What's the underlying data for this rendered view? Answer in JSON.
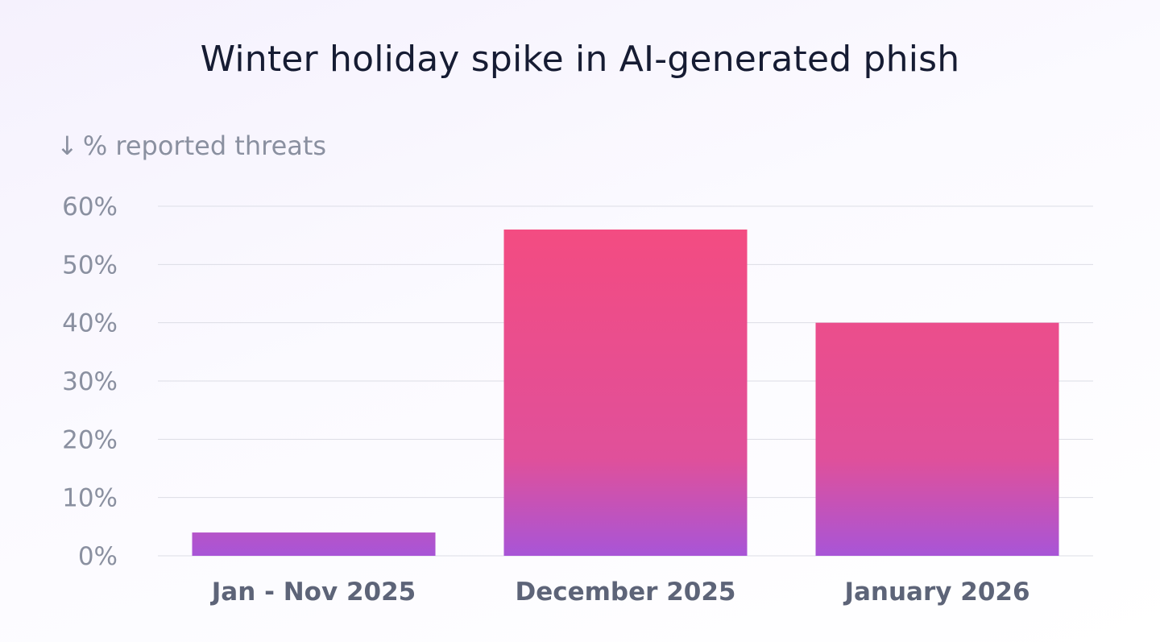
{
  "chart_data": {
    "type": "bar",
    "title": "Winter holiday spike in AI-generated phish",
    "ylabel": "% reported threats",
    "ylabel_icon": "arrow-down-icon",
    "ylabel_arrow": "↓",
    "xlabel": "",
    "categories": [
      "Jan - Nov 2025",
      "December 2025",
      "January 2026"
    ],
    "values": [
      4,
      56,
      40
    ],
    "ylim": [
      0,
      60
    ],
    "yticks": [
      0,
      10,
      20,
      30,
      40,
      50,
      60
    ],
    "ytick_labels": [
      "0%",
      "10%",
      "20%",
      "30%",
      "40%",
      "50%",
      "60%"
    ],
    "grid": true,
    "legend": "none",
    "colors": {
      "bar_top": "#f54b7f",
      "bar_mid": "#e0509a",
      "bar_bottom": "#a855d7",
      "title": "#161c33",
      "axis_text": "#8a90a0",
      "category_text": "#5d6478",
      "grid": "#dcdde5"
    }
  }
}
